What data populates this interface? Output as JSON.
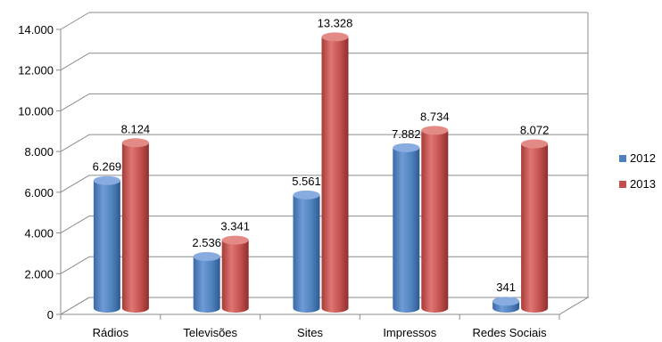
{
  "chart_data": {
    "type": "bar",
    "categories": [
      "Rádios",
      "Televisões",
      "Sites",
      "Impressos",
      "Redes Sociais"
    ],
    "series": [
      {
        "name": "2012",
        "values": [
          6269,
          2536,
          5561,
          7882,
          341
        ],
        "labels": [
          "6.269",
          "2.536",
          "5.561",
          "7.882",
          "341"
        ],
        "color": "#4F81BD"
      },
      {
        "name": "2013",
        "values": [
          8124,
          3341,
          13328,
          8734,
          8072
        ],
        "labels": [
          "8.124",
          "3.341",
          "13.328",
          "8.734",
          "8.072"
        ],
        "color": "#C0504D"
      }
    ],
    "ylim": [
      0,
      14000
    ],
    "yticks": [
      "0",
      "2.000",
      "4.000",
      "6.000",
      "8.000",
      "10.000",
      "12.000",
      "14.000"
    ],
    "grid": true,
    "legend": "right",
    "style": "3d-cylinder"
  }
}
